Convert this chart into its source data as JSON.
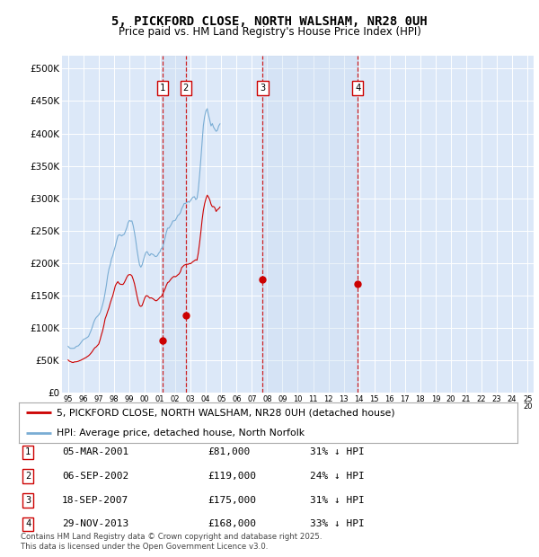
{
  "title": "5, PICKFORD CLOSE, NORTH WALSHAM, NR28 0UH",
  "subtitle": "Price paid vs. HM Land Registry's House Price Index (HPI)",
  "background_color": "#ffffff",
  "plot_bg_color": "#dce8f8",
  "grid_color": "#ffffff",
  "legend_line1": "5, PICKFORD CLOSE, NORTH WALSHAM, NR28 0UH (detached house)",
  "legend_line2": "HPI: Average price, detached house, North Norfolk",
  "footer": "Contains HM Land Registry data © Crown copyright and database right 2025.\nThis data is licensed under the Open Government Licence v3.0.",
  "transactions": [
    {
      "num": 1,
      "date": "05-MAR-2001",
      "price": "£81,000",
      "pct": "31% ↓ HPI",
      "year": 2001.17
    },
    {
      "num": 2,
      "date": "06-SEP-2002",
      "price": "£119,000",
      "pct": "24% ↓ HPI",
      "year": 2002.67
    },
    {
      "num": 3,
      "date": "18-SEP-2007",
      "price": "£175,000",
      "pct": "31% ↓ HPI",
      "year": 2007.71
    },
    {
      "num": 4,
      "date": "29-NOV-2013",
      "price": "£168,000",
      "pct": "33% ↓ HPI",
      "year": 2013.91
    }
  ],
  "red_dot_years": [
    2001.17,
    2002.67,
    2007.71,
    2013.91
  ],
  "red_dot_values": [
    81000,
    119000,
    175000,
    168000
  ],
  "red_line_color": "#cc0000",
  "blue_line_color": "#7aadd4",
  "dashed_color": "#cc0000",
  "shade_color": "#c8dcf0",
  "ylim": [
    0,
    520000
  ],
  "yticks": [
    0,
    50000,
    100000,
    150000,
    200000,
    250000,
    300000,
    350000,
    400000,
    450000,
    500000
  ],
  "ytick_labels": [
    "£0",
    "£50K",
    "£100K",
    "£150K",
    "£200K",
    "£250K",
    "£300K",
    "£350K",
    "£400K",
    "£450K",
    "£500K"
  ],
  "xmin": 1994.6,
  "xmax": 2025.4,
  "hpi_years_monthly": true,
  "hpi_base_values": [
    71000,
    69000,
    68000,
    67500,
    68000,
    68500,
    70000,
    71000,
    72000,
    74000,
    77000,
    80000,
    82000,
    84000,
    85500,
    86500,
    88000,
    92000,
    97000,
    103000,
    108000,
    113000,
    116000,
    119000,
    121000,
    124000,
    130000,
    136000,
    144000,
    155000,
    167000,
    179000,
    190000,
    198000,
    206000,
    213000,
    220000,
    229000,
    238000,
    244000,
    244000,
    243000,
    242000,
    244000,
    247000,
    252000,
    257000,
    262000,
    265000,
    267000,
    266000,
    259000,
    249000,
    235000,
    219000,
    206000,
    197000,
    194000,
    197000,
    203000,
    211000,
    217000,
    219000,
    216000,
    212000,
    213000,
    213000,
    211000,
    209000,
    210000,
    211000,
    213000,
    216000,
    220000,
    225000,
    231000,
    239000,
    248000,
    254000,
    257000,
    259000,
    261000,
    263000,
    265000,
    267000,
    271000,
    273000,
    274000,
    278000,
    283000,
    287000,
    290000,
    292000,
    294000,
    296000,
    297000,
    298000,
    300000,
    302000,
    303000,
    301000,
    302000,
    315000,
    338000,
    362000,
    387000,
    408000,
    423000,
    432000,
    437000,
    433000,
    423000,
    413000,
    410000,
    407000,
    404000,
    402000,
    407000,
    410000,
    412000
  ],
  "red_base_values": [
    50000,
    48500,
    47500,
    47000,
    46500,
    47000,
    47500,
    48000,
    48500,
    49500,
    50500,
    51500,
    52500,
    53500,
    54500,
    55500,
    57000,
    59000,
    61000,
    64000,
    67000,
    69000,
    71000,
    73000,
    75000,
    81000,
    89000,
    96000,
    104000,
    114000,
    119000,
    125000,
    131000,
    138000,
    144000,
    150000,
    156000,
    164000,
    169000,
    171000,
    169000,
    167000,
    166000,
    167000,
    169000,
    173000,
    177000,
    179000,
    181000,
    182000,
    181000,
    176000,
    169000,
    159000,
    149000,
    140000,
    134000,
    132000,
    134000,
    138000,
    144000,
    149000,
    150000,
    148000,
    146000,
    146000,
    145000,
    144000,
    143000,
    143000,
    144000,
    145000,
    147000,
    149000,
    152000,
    156000,
    161000,
    166000,
    170000,
    172000,
    174000,
    176000,
    177000,
    178000,
    179000,
    181000,
    182000,
    183000,
    186000,
    189000,
    192000,
    194000,
    195000,
    196000,
    197000,
    198000,
    199000,
    201000,
    203000,
    204000,
    203000,
    205000,
    215000,
    232000,
    249000,
    266000,
    281000,
    293000,
    301000,
    305000,
    303000,
    298000,
    291000,
    288000,
    285000,
    283000,
    281000,
    283000,
    285000,
    286000
  ]
}
